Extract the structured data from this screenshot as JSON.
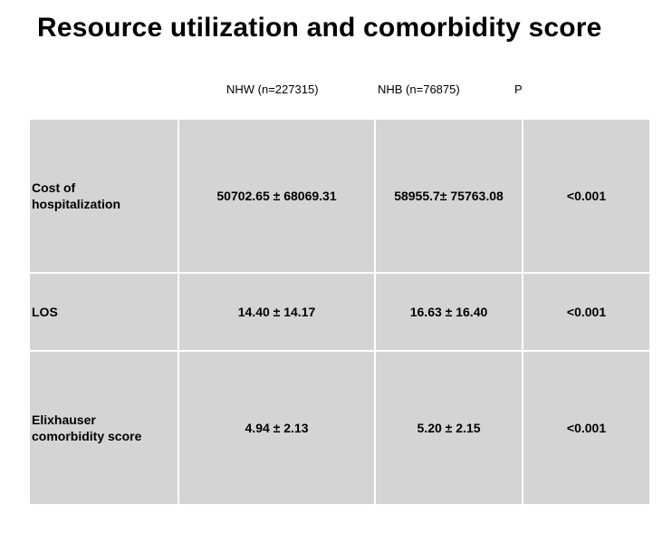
{
  "slide": {
    "title": "Resource utilization and comorbidity score"
  },
  "table": {
    "headers": {
      "nhw": "NHW (n=227315)",
      "nhb": "NHB (n=76875)",
      "p": "P"
    },
    "rows": [
      {
        "label_line1": "Cost of",
        "label_line2": "hospitalization",
        "nhw": "50702.65 ± 68069.31",
        "nhb": "58955.7± 75763.08",
        "p": "<0.001"
      },
      {
        "label_line1": "LOS",
        "label_line2": "",
        "nhw": "14.40 ± 14.17",
        "nhb": "16.63 ± 16.40",
        "p": "<0.001"
      },
      {
        "label_line1": "Elixhauser",
        "label_line2": "comorbidity score",
        "nhw": "4.94 ± 2.13",
        "nhb": "5.20 ± 2.15",
        "p": "<0.001"
      }
    ]
  }
}
